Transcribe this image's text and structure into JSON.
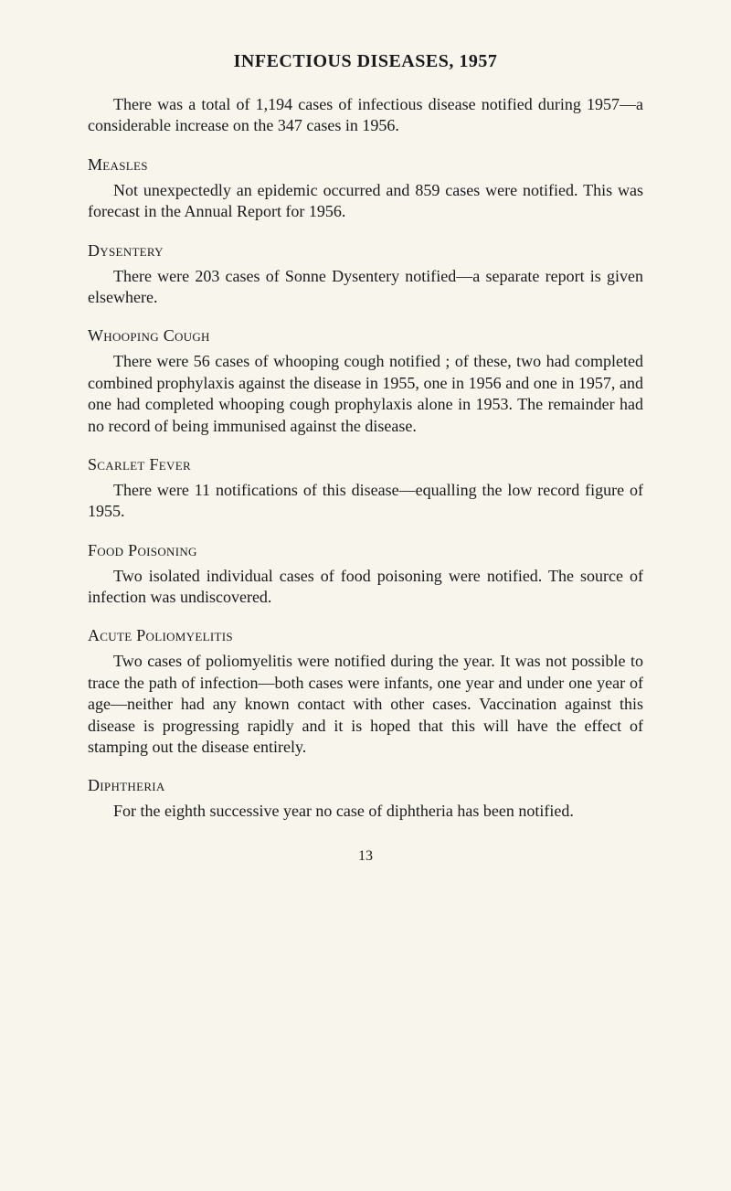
{
  "page": {
    "title": "INFECTIOUS DISEASES, 1957",
    "intro": "There was a total of 1,194 cases of infectious disease notified during 1957—a considerable increase on the 347 cases in 1956.",
    "pageNumber": "13"
  },
  "sections": {
    "measles": {
      "heading": "Measles",
      "text": "Not unexpectedly an epidemic occurred and 859 cases were notified. This was forecast in the Annual Report for 1956."
    },
    "dysentery": {
      "heading": "Dysentery",
      "text": "There were 203 cases of Sonne Dysentery notified—a separate report is given elsewhere."
    },
    "whoopingCough": {
      "heading": "Whooping Cough",
      "text": "There were 56 cases of whooping cough notified ; of these, two had completed combined prophylaxis against the disease in 1955, one in 1956 and one in 1957, and one had completed whooping cough prophylaxis alone in 1953. The remainder had no record of being immunised against the disease."
    },
    "scarletFever": {
      "heading": "Scarlet Fever",
      "text": "There were 11 notifications of this disease—equalling the low record figure of 1955."
    },
    "foodPoisoning": {
      "heading": "Food Poisoning",
      "text": "Two isolated individual cases of food poisoning were notified. The source of infection was undiscovered."
    },
    "acutePoliomyelitis": {
      "heading": "Acute Poliomyelitis",
      "text": "Two cases of poliomyelitis were notified during the year. It was not possible to trace the path of infection—both cases were infants, one year and under one year of age—neither had any known contact with other cases. Vaccination against this disease is progressing rapidly and it is hoped that this will have the effect of stamping out the disease entirely."
    },
    "diphtheria": {
      "heading": "Diphtheria",
      "text": "For the eighth successive year no case of diphtheria has been notified."
    }
  }
}
